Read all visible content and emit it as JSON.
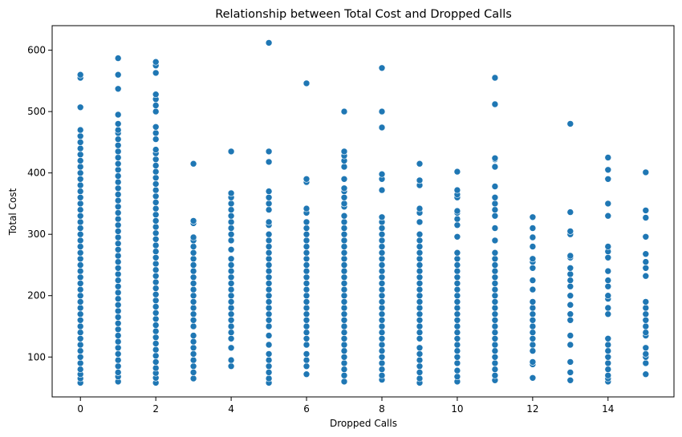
{
  "chart_data": {
    "type": "scatter",
    "title": "Relationship between Total Cost and Dropped Calls",
    "xlabel": "Dropped Calls",
    "ylabel": "Total Cost",
    "xlim": [
      -0.75,
      15.75
    ],
    "ylim": [
      35,
      640
    ],
    "xticks": [
      0,
      2,
      4,
      6,
      8,
      10,
      12,
      14
    ],
    "yticks": [
      100,
      200,
      300,
      400,
      500,
      600
    ],
    "grid": false,
    "legend": "none",
    "marker_color": "#1f77b4",
    "groups": [
      {
        "x": 0,
        "y": [
          58,
          65,
          72,
          80,
          90,
          100,
          110,
          120,
          130,
          140,
          150,
          160,
          170,
          180,
          190,
          200,
          210,
          220,
          230,
          240,
          250,
          260,
          270,
          280,
          290,
          300,
          310,
          320,
          330,
          340,
          350,
          360,
          370,
          380,
          390,
          400,
          410,
          420,
          430,
          440,
          450,
          460,
          470,
          507,
          555,
          560
        ]
      },
      {
        "x": 1,
        "y": [
          60,
          68,
          75,
          85,
          95,
          105,
          115,
          125,
          135,
          145,
          155,
          165,
          175,
          185,
          195,
          205,
          215,
          225,
          235,
          245,
          255,
          265,
          275,
          285,
          295,
          305,
          315,
          325,
          335,
          345,
          355,
          365,
          375,
          385,
          395,
          405,
          415,
          425,
          435,
          445,
          455,
          465,
          470,
          480,
          495,
          537,
          560,
          587
        ]
      },
      {
        "x": 2,
        "y": [
          58,
          66,
          74,
          82,
          92,
          102,
          112,
          122,
          132,
          142,
          152,
          162,
          172,
          182,
          192,
          202,
          212,
          222,
          232,
          242,
          252,
          262,
          272,
          282,
          292,
          302,
          312,
          322,
          332,
          342,
          352,
          362,
          372,
          382,
          392,
          402,
          412,
          422,
          432,
          438,
          455,
          465,
          475,
          500,
          510,
          520,
          528,
          563,
          575,
          581
        ]
      },
      {
        "x": 3,
        "y": [
          65,
          75,
          85,
          95,
          105,
          115,
          125,
          135,
          150,
          160,
          170,
          180,
          190,
          200,
          210,
          220,
          230,
          240,
          250,
          260,
          270,
          280,
          290,
          295,
          318,
          322,
          415
        ]
      },
      {
        "x": 4,
        "y": [
          85,
          95,
          115,
          130,
          140,
          150,
          160,
          170,
          180,
          190,
          200,
          210,
          220,
          230,
          240,
          250,
          260,
          275,
          290,
          300,
          310,
          320,
          330,
          340,
          350,
          360,
          367,
          435
        ]
      },
      {
        "x": 5,
        "y": [
          58,
          65,
          75,
          85,
          95,
          105,
          120,
          135,
          150,
          160,
          170,
          180,
          190,
          200,
          210,
          220,
          230,
          240,
          250,
          260,
          270,
          280,
          290,
          300,
          315,
          320,
          340,
          350,
          360,
          370,
          418,
          435,
          612
        ]
      },
      {
        "x": 6,
        "y": [
          72,
          85,
          95,
          105,
          120,
          130,
          140,
          150,
          160,
          170,
          180,
          190,
          200,
          210,
          220,
          230,
          240,
          250,
          260,
          270,
          280,
          290,
          300,
          310,
          320,
          335,
          342,
          385,
          390,
          546
        ]
      },
      {
        "x": 7,
        "y": [
          60,
          70,
          80,
          90,
          100,
          110,
          120,
          130,
          140,
          150,
          160,
          170,
          180,
          190,
          200,
          210,
          220,
          230,
          240,
          250,
          260,
          270,
          280,
          290,
          300,
          310,
          320,
          330,
          345,
          350,
          360,
          370,
          375,
          390,
          410,
          420,
          428,
          435,
          500
        ]
      },
      {
        "x": 8,
        "y": [
          63,
          70,
          80,
          90,
          100,
          110,
          120,
          130,
          140,
          150,
          160,
          170,
          180,
          190,
          200,
          210,
          220,
          230,
          240,
          250,
          260,
          270,
          280,
          290,
          300,
          310,
          320,
          328,
          372,
          390,
          398,
          474,
          500,
          571
        ]
      },
      {
        "x": 9,
        "y": [
          58,
          65,
          75,
          85,
          95,
          105,
          115,
          130,
          140,
          150,
          160,
          170,
          180,
          190,
          200,
          210,
          220,
          230,
          240,
          250,
          260,
          270,
          280,
          290,
          300,
          320,
          335,
          342,
          380,
          388,
          415
        ]
      },
      {
        "x": 10,
        "y": [
          60,
          68,
          78,
          90,
          100,
          110,
          120,
          130,
          140,
          150,
          160,
          170,
          180,
          190,
          200,
          210,
          220,
          230,
          240,
          250,
          260,
          270,
          296,
          315,
          325,
          335,
          338,
          360,
          365,
          372,
          402
        ]
      },
      {
        "x": 11,
        "y": [
          62,
          70,
          80,
          90,
          100,
          110,
          120,
          130,
          140,
          150,
          160,
          170,
          180,
          190,
          200,
          210,
          220,
          230,
          240,
          250,
          260,
          270,
          290,
          310,
          330,
          340,
          350,
          360,
          378,
          410,
          422,
          424,
          512,
          555
        ]
      },
      {
        "x": 12,
        "y": [
          66,
          88,
          92,
          110,
          120,
          130,
          140,
          150,
          160,
          170,
          180,
          190,
          210,
          225,
          245,
          255,
          260,
          280,
          295,
          310,
          328
        ]
      },
      {
        "x": 13,
        "y": [
          62,
          75,
          92,
          120,
          135,
          160,
          170,
          185,
          200,
          215,
          225,
          235,
          245,
          262,
          265,
          300,
          305,
          336,
          480
        ]
      },
      {
        "x": 14,
        "y": [
          60,
          65,
          70,
          80,
          90,
          100,
          110,
          120,
          130,
          170,
          180,
          195,
          200,
          215,
          225,
          240,
          262,
          272,
          280,
          330,
          350,
          390,
          405,
          425
        ]
      },
      {
        "x": 15,
        "y": [
          72,
          90,
          100,
          105,
          115,
          135,
          140,
          150,
          160,
          170,
          180,
          190,
          232,
          245,
          255,
          268,
          296,
          327,
          339,
          401
        ]
      }
    ]
  }
}
